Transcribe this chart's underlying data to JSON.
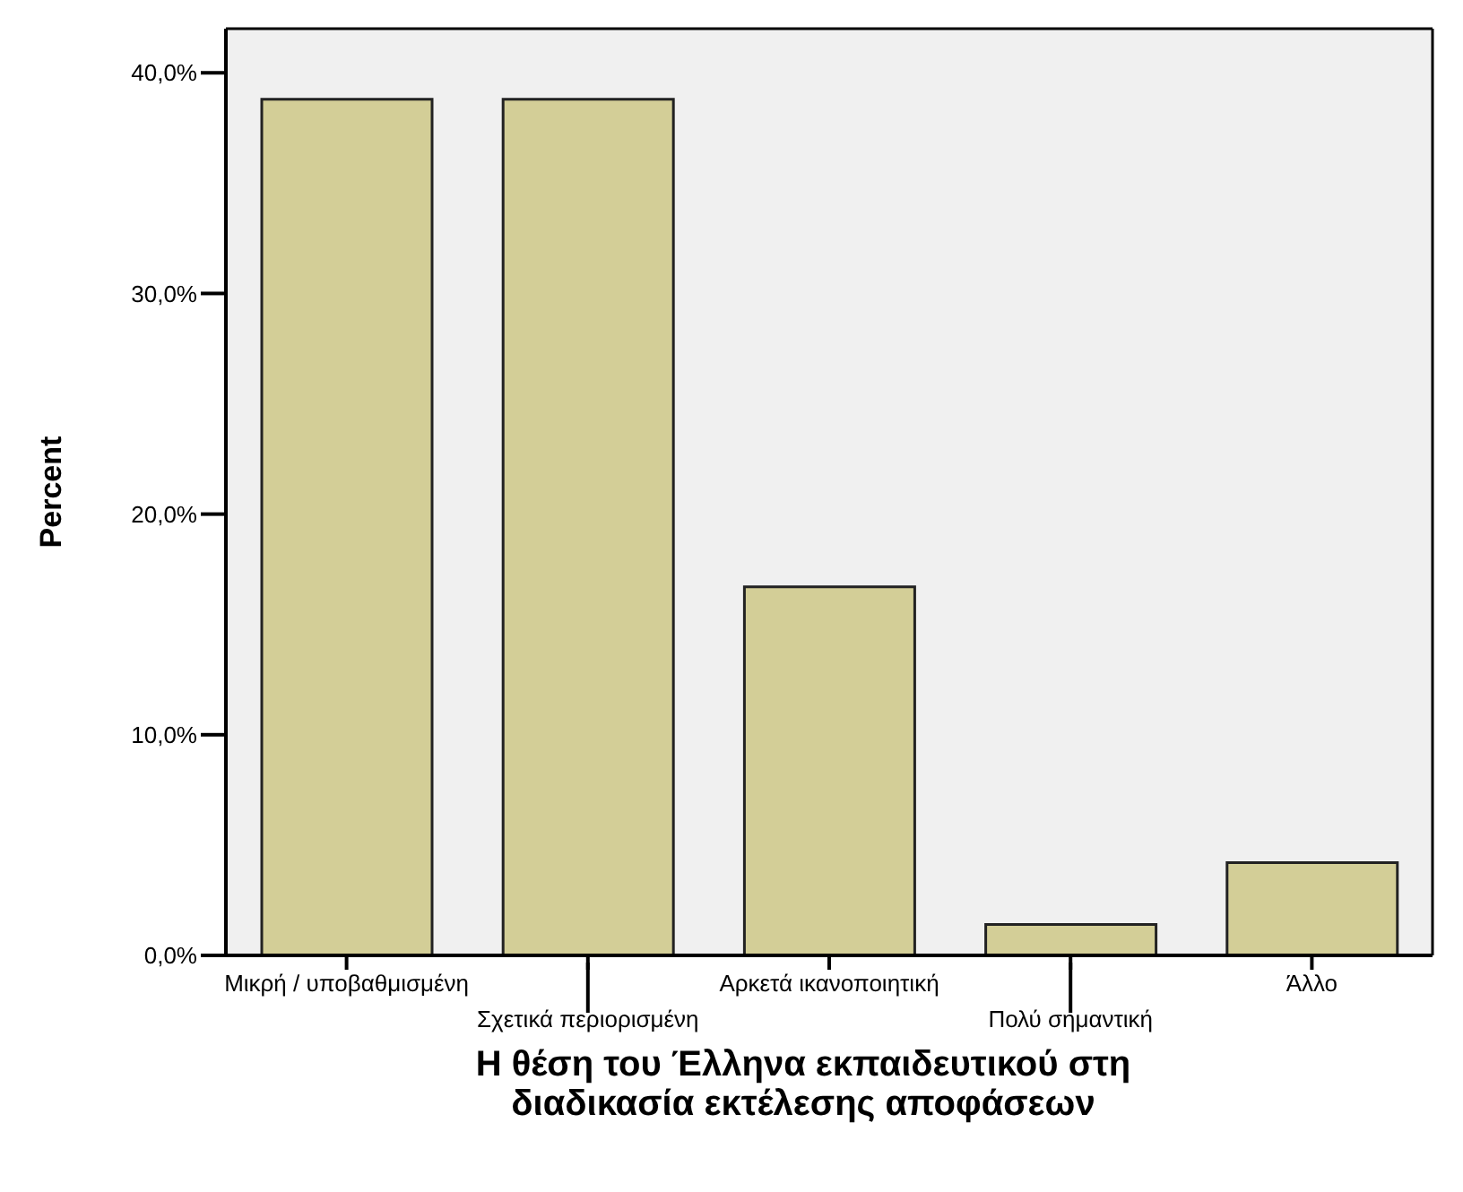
{
  "chart_data": {
    "type": "bar",
    "xlabel": "Η θέση του Έλληνα εκπαιδευτικού στη διαδικασία εκτέλεσης αποφάσεων",
    "ylabel": "Percent",
    "categories": [
      "Μικρή / υποβαθμισμένη",
      "Σχετικά περιορισμένη",
      "Αρκετά ικανοποιητική",
      "Πολύ σημαντική",
      "Άλλο"
    ],
    "values": [
      38.8,
      38.8,
      16.7,
      1.4,
      4.2
    ],
    "color": "#d3ce97",
    "ylim": [
      0,
      42
    ],
    "yticks": [
      {
        "value": 0,
        "label": "0,0%"
      },
      {
        "value": 10,
        "label": "10,0%"
      },
      {
        "value": 20,
        "label": "20,0%"
      },
      {
        "value": 30,
        "label": "30,0%"
      },
      {
        "value": 40,
        "label": "40,0%"
      }
    ],
    "grid": false,
    "legend": false
  }
}
